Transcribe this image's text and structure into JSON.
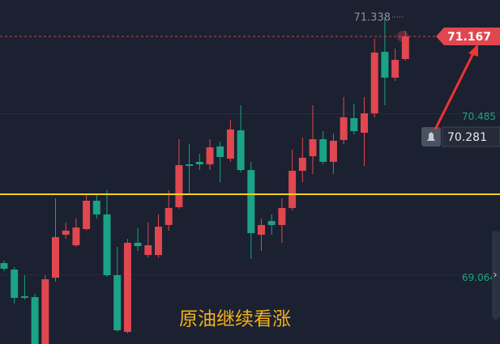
{
  "chart_data": {
    "type": "candlestick",
    "open": [
      69.167,
      69.11,
      68.874,
      68.867,
      68.453,
      69.038,
      69.417,
      69.324,
      69.467,
      69.717,
      69.596,
      69.06,
      68.56,
      69.346,
      69.238,
      69.238,
      69.503,
      69.66,
      70.038,
      70.06,
      70.038,
      70.196,
      70.088,
      70.338,
      69.988,
      69.417,
      69.538,
      69.503,
      69.653,
      69.981,
      70.11,
      70.26,
      70.06,
      70.253,
      70.446,
      70.317,
      70.488,
      71.031,
      70.803,
      70.967
    ],
    "high": [
      69.188,
      69.131,
      69.06,
      68.896,
      69.06,
      69.738,
      69.524,
      69.56,
      69.774,
      69.774,
      69.81,
      69.31,
      69.381,
      69.474,
      69.524,
      69.596,
      69.81,
      70.26,
      70.217,
      70.131,
      70.26,
      70.238,
      70.431,
      70.56,
      70.06,
      69.56,
      69.596,
      69.738,
      70.167,
      70.274,
      70.56,
      70.331,
      70.31,
      70.631,
      70.574,
      70.631,
      71.146,
      71.338,
      71.06,
      71.217
    ],
    "low": [
      69.096,
      68.81,
      68.846,
      68.453,
      68.453,
      69.003,
      69.381,
      69.31,
      69.453,
      69.56,
      69.046,
      68.56,
      68.546,
      69.274,
      69.217,
      69.217,
      69.453,
      69.646,
      69.774,
      69.988,
      69.988,
      69.881,
      70.06,
      69.967,
      69.203,
      69.274,
      69.417,
      69.346,
      69.631,
      69.881,
      69.953,
      70.038,
      69.953,
      70.217,
      70.303,
      70.024,
      70.453,
      70.56,
      70.774,
      70.953
    ],
    "close": [
      69.117,
      68.86,
      68.86,
      68.453,
      69.024,
      69.396,
      69.453,
      69.481,
      69.717,
      69.596,
      69.06,
      68.574,
      69.346,
      69.317,
      69.324,
      69.488,
      69.653,
      70.031,
      70.024,
      70.038,
      70.188,
      70.103,
      70.346,
      69.988,
      69.431,
      69.503,
      69.503,
      69.653,
      69.981,
      70.096,
      70.26,
      70.06,
      70.246,
      70.453,
      70.331,
      70.488,
      71.024,
      70.803,
      70.96,
      71.167
    ],
    "up_color": "#e0474f",
    "down_color": "#1aa386",
    "ylim": [
      68.453,
      71.488
    ],
    "yticks": [
      70.485,
      69.064
    ],
    "max_label": 71.338,
    "last_price": 71.167,
    "alert_price": 70.281,
    "support_line": 69.774,
    "annotation": "原油继续看涨"
  }
}
